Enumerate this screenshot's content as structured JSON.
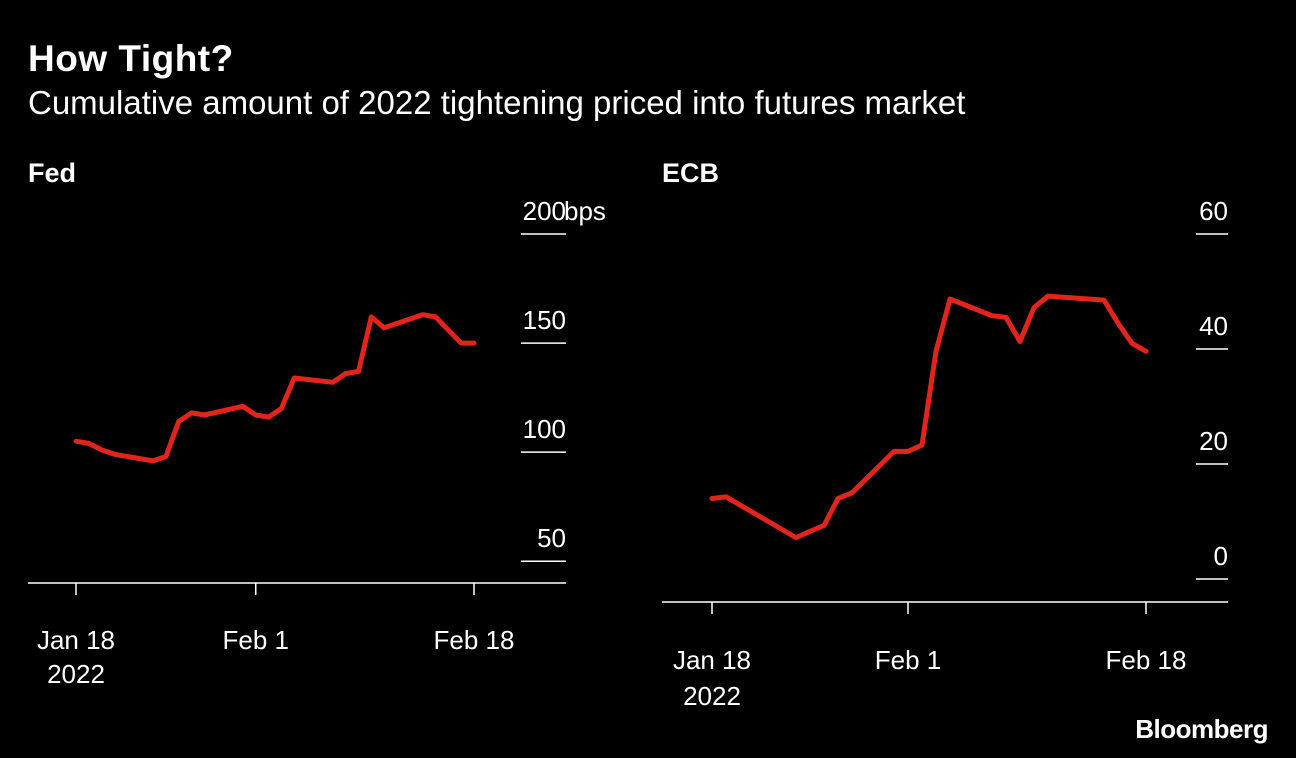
{
  "header": {
    "title": "How Tight?",
    "subtitle": "Cumulative amount of 2022 tightening priced into futures market"
  },
  "source": "Bloomberg",
  "colors": {
    "background": "#000000",
    "line": "#e3241b",
    "text": "#ffffff"
  },
  "chart_data": [
    {
      "type": "line",
      "title": "Fed",
      "xlabel": "",
      "ylabel": "",
      "y_unit": "bps",
      "ylim": [
        40,
        200
      ],
      "yticks": [
        {
          "value": 200,
          "label": "200"
        },
        {
          "value": 150,
          "label": "150"
        },
        {
          "value": 100,
          "label": "100"
        },
        {
          "value": 50,
          "label": "50"
        }
      ],
      "xticks": [
        {
          "date": "2022-01-18",
          "label": "Jan 18",
          "sublabel": "2022"
        },
        {
          "date": "2022-02-01",
          "label": "Feb 1",
          "sublabel": ""
        },
        {
          "date": "2022-02-18",
          "label": "Feb 18",
          "sublabel": ""
        }
      ],
      "axis_side": "right",
      "grid": false,
      "series": [
        {
          "values": [
            {
              "x": "2022-01-18",
              "y": 105
            },
            {
              "x": "2022-01-19",
              "y": 104
            },
            {
              "x": "2022-01-20",
              "y": 101
            },
            {
              "x": "2022-01-21",
              "y": 99
            },
            {
              "x": "2022-01-24",
              "y": 96
            },
            {
              "x": "2022-01-25",
              "y": 98
            },
            {
              "x": "2022-01-26",
              "y": 114
            },
            {
              "x": "2022-01-27",
              "y": 118
            },
            {
              "x": "2022-01-28",
              "y": 117
            },
            {
              "x": "2022-01-31",
              "y": 121
            },
            {
              "x": "2022-02-01",
              "y": 117
            },
            {
              "x": "2022-02-02",
              "y": 116
            },
            {
              "x": "2022-02-03",
              "y": 120
            },
            {
              "x": "2022-02-04",
              "y": 134
            },
            {
              "x": "2022-02-07",
              "y": 132
            },
            {
              "x": "2022-02-08",
              "y": 136
            },
            {
              "x": "2022-02-09",
              "y": 137
            },
            {
              "x": "2022-02-10",
              "y": 162
            },
            {
              "x": "2022-02-11",
              "y": 157
            },
            {
              "x": "2022-02-14",
              "y": 163
            },
            {
              "x": "2022-02-15",
              "y": 162
            },
            {
              "x": "2022-02-16",
              "y": 156
            },
            {
              "x": "2022-02-17",
              "y": 150
            },
            {
              "x": "2022-02-18",
              "y": 150
            }
          ]
        }
      ]
    },
    {
      "type": "line",
      "title": "ECB",
      "xlabel": "",
      "ylabel": "",
      "y_unit": "",
      "ylim": [
        -4,
        60
      ],
      "yticks": [
        {
          "value": 60,
          "label": "60"
        },
        {
          "value": 40,
          "label": "40"
        },
        {
          "value": 20,
          "label": "20"
        },
        {
          "value": 0,
          "label": "0"
        }
      ],
      "xticks": [
        {
          "date": "2022-01-18",
          "label": "Jan 18",
          "sublabel": "2022"
        },
        {
          "date": "2022-02-01",
          "label": "Feb 1",
          "sublabel": ""
        },
        {
          "date": "2022-02-18",
          "label": "Feb 18",
          "sublabel": ""
        }
      ],
      "axis_side": "right",
      "grid": false,
      "series": [
        {
          "values": [
            {
              "x": "2022-01-18",
              "y": 14
            },
            {
              "x": "2022-01-19",
              "y": 14.3
            },
            {
              "x": "2022-01-24",
              "y": 7.2
            },
            {
              "x": "2022-01-25",
              "y": 8.3
            },
            {
              "x": "2022-01-26",
              "y": 9.3
            },
            {
              "x": "2022-01-27",
              "y": 14
            },
            {
              "x": "2022-01-28",
              "y": 15
            },
            {
              "x": "2022-01-31",
              "y": 22.2
            },
            {
              "x": "2022-02-01",
              "y": 22.2
            },
            {
              "x": "2022-02-02",
              "y": 23.3
            },
            {
              "x": "2022-02-03",
              "y": 39.6
            },
            {
              "x": "2022-02-04",
              "y": 48.7
            },
            {
              "x": "2022-02-07",
              "y": 45.8
            },
            {
              "x": "2022-02-08",
              "y": 45.5
            },
            {
              "x": "2022-02-09",
              "y": 41.3
            },
            {
              "x": "2022-02-10",
              "y": 47.2
            },
            {
              "x": "2022-02-11",
              "y": 49.2
            },
            {
              "x": "2022-02-15",
              "y": 48.5
            },
            {
              "x": "2022-02-16",
              "y": 44.5
            },
            {
              "x": "2022-02-17",
              "y": 41
            },
            {
              "x": "2022-02-18",
              "y": 39.6
            }
          ]
        }
      ]
    }
  ]
}
